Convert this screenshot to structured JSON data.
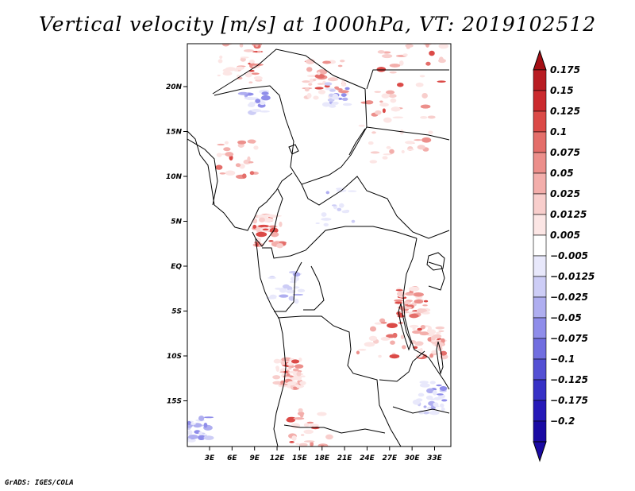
{
  "title": "Vertical velocity [m/s] at 1000hPa, VT: 2019102512",
  "credit": "GrADS: IGES/COLA",
  "map": {
    "lat_ticks": [
      {
        "value": 20,
        "label": "20N"
      },
      {
        "value": 15,
        "label": "15N"
      },
      {
        "value": 10,
        "label": "10N"
      },
      {
        "value": 5,
        "label": "5N"
      },
      {
        "value": 0,
        "label": "EQ"
      },
      {
        "value": -5,
        "label": "5S"
      },
      {
        "value": -10,
        "label": "10S"
      },
      {
        "value": -15,
        "label": "15S"
      }
    ],
    "lon_ticks": [
      {
        "value": 3,
        "label": "3E"
      },
      {
        "value": 6,
        "label": "6E"
      },
      {
        "value": 9,
        "label": "9E"
      },
      {
        "value": 12,
        "label": "12E"
      },
      {
        "value": 15,
        "label": "15E"
      },
      {
        "value": 18,
        "label": "18E"
      },
      {
        "value": 21,
        "label": "21E"
      },
      {
        "value": 24,
        "label": "24E"
      },
      {
        "value": 27,
        "label": "27E"
      },
      {
        "value": 30,
        "label": "30E"
      },
      {
        "value": 33,
        "label": "33E"
      }
    ]
  },
  "colorbar": {
    "levels": [
      {
        "label": "0.175",
        "color": "#a50f15"
      },
      {
        "label": "0.15",
        "color": "#b81c22"
      },
      {
        "label": "0.125",
        "color": "#cb2a2e"
      },
      {
        "label": "0.1",
        "color": "#db4a47"
      },
      {
        "label": "0.075",
        "color": "#e46e6a"
      },
      {
        "label": "0.05",
        "color": "#ec8f8b"
      },
      {
        "label": "0.025",
        "color": "#f3aeab"
      },
      {
        "label": "0.0125",
        "color": "#f8cecc"
      },
      {
        "label": "0.005",
        "color": "#fce6e5"
      },
      {
        "label": "−0.005",
        "color": "#ffffff"
      },
      {
        "label": "−0.0125",
        "color": "#e8e8fb"
      },
      {
        "label": "−0.025",
        "color": "#cdcdf6"
      },
      {
        "label": "−0.05",
        "color": "#afaef0"
      },
      {
        "label": "−0.075",
        "color": "#8f8dea"
      },
      {
        "label": "−0.1",
        "color": "#716ee0"
      },
      {
        "label": "−0.125",
        "color": "#5450d4"
      },
      {
        "label": "−0.175",
        "color": "#3731c6"
      },
      {
        "label": "−0.2",
        "color": "#2619b8"
      },
      {
        "label": "",
        "color": "#1a0aa3"
      }
    ],
    "top_arrow_color": "#a50f15",
    "bottom_arrow_color": "#1a0aa3"
  }
}
